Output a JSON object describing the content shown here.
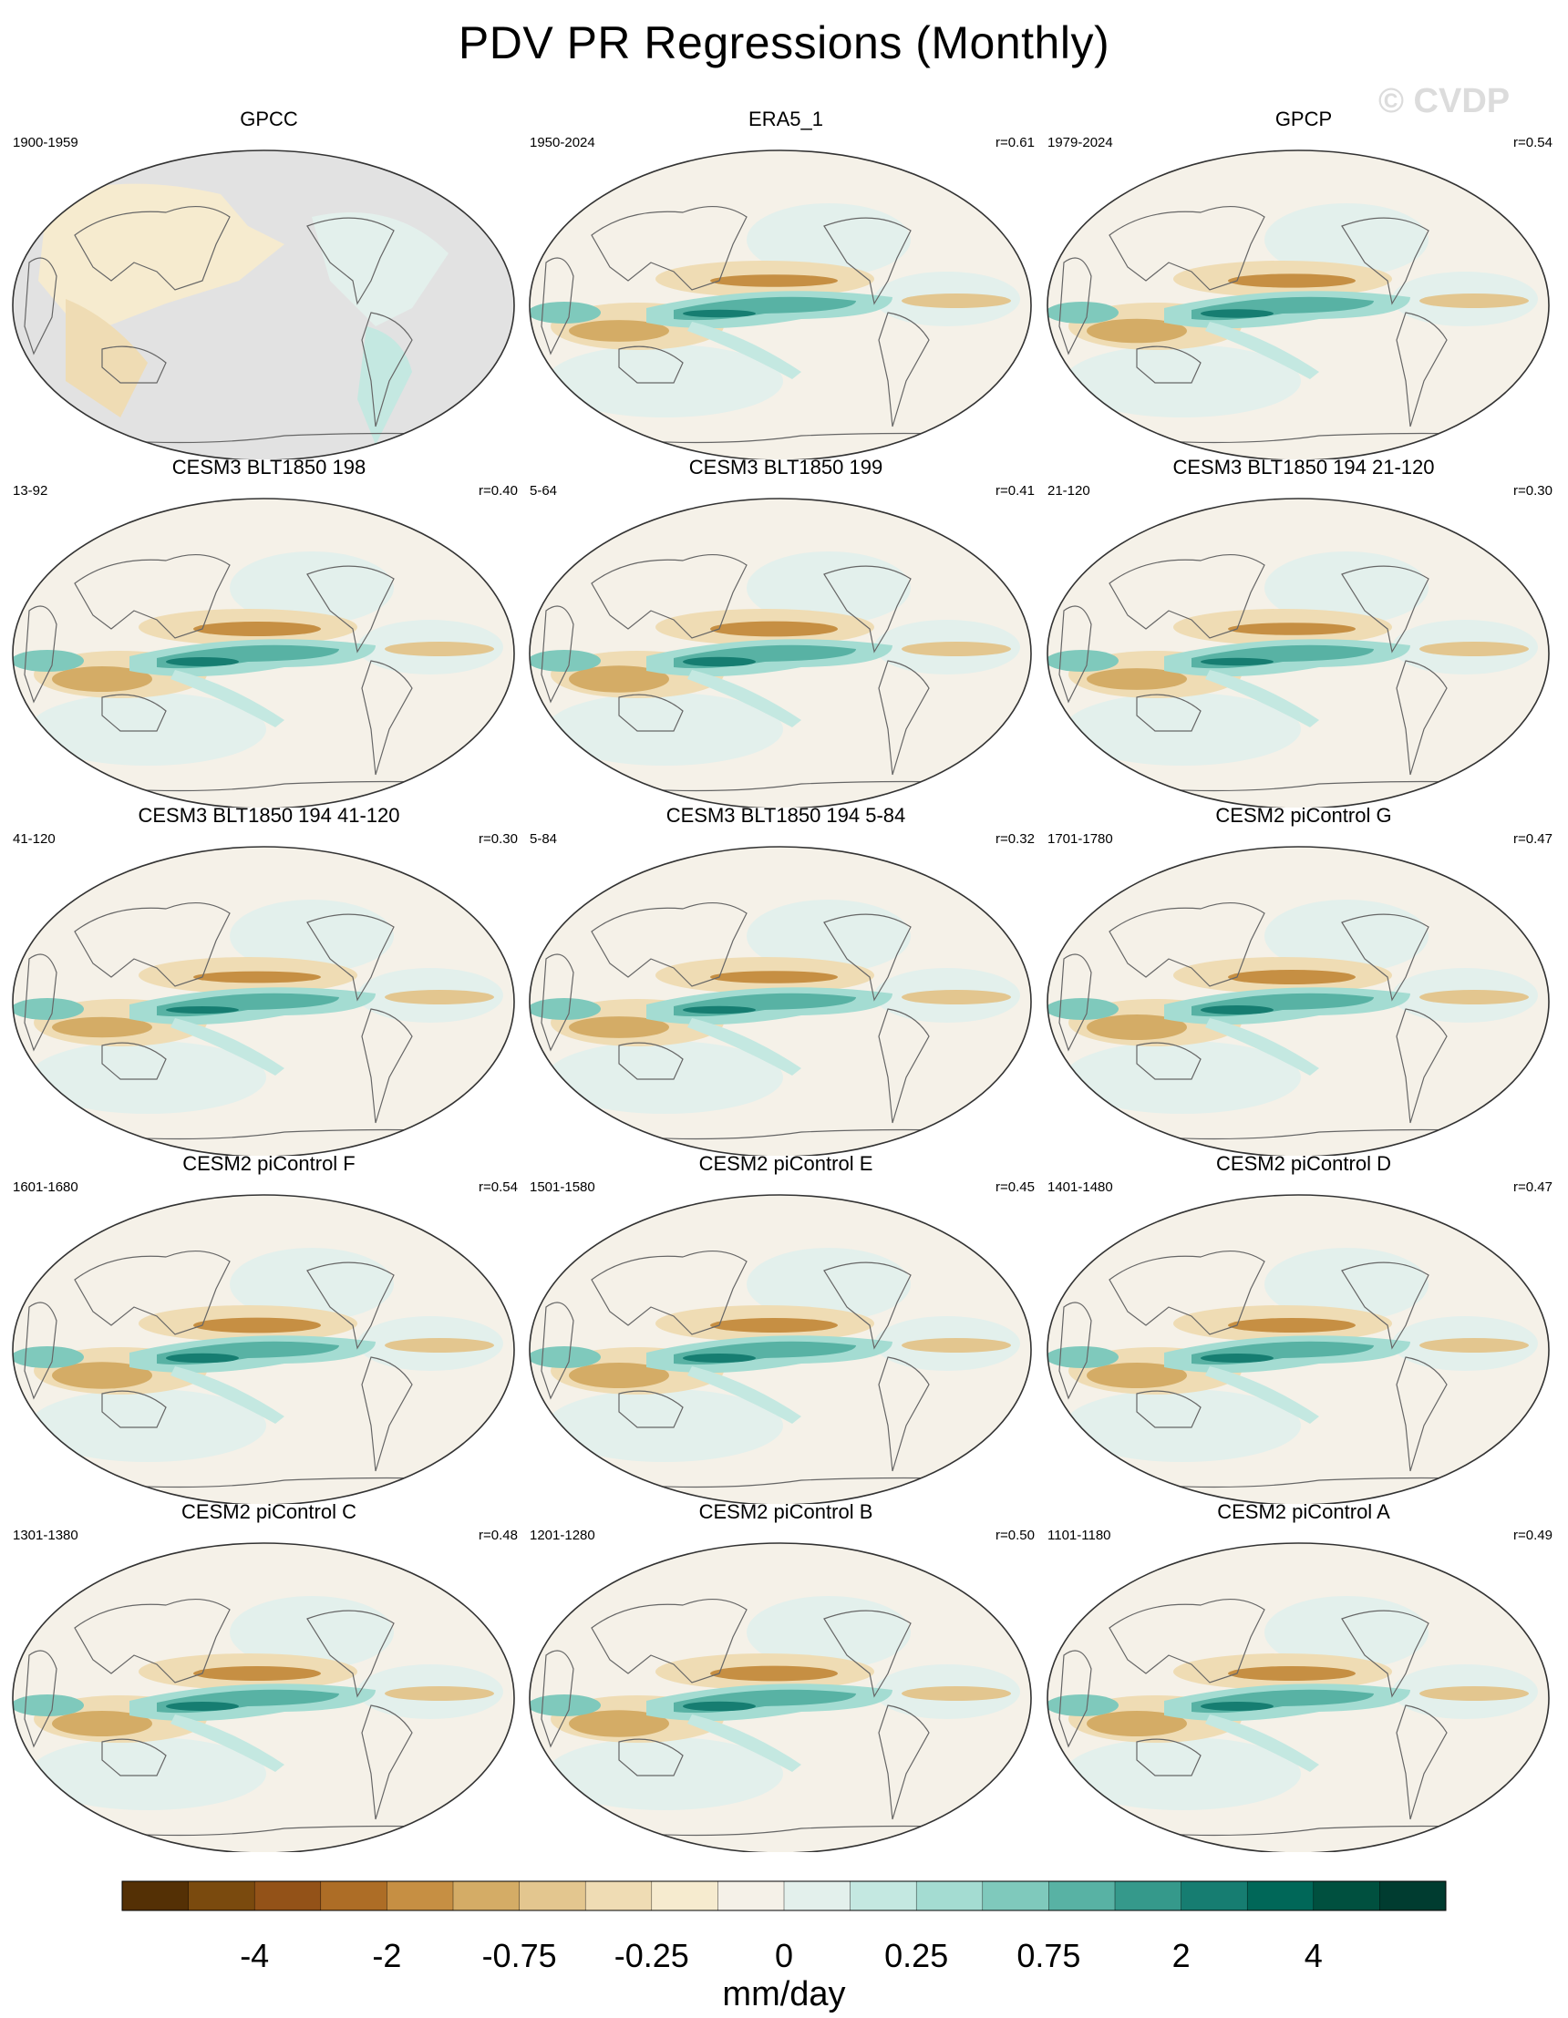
{
  "title": "PDV PR Regressions (Monthly)",
  "watermark": "© CVDP",
  "panels": [
    {
      "title": "GPCC",
      "period": "1900-1959",
      "r": "",
      "masked": true,
      "scale": 0.55
    },
    {
      "title": "ERA5_1",
      "period": "1950-2024",
      "r": "r=0.61",
      "masked": false,
      "scale": 0.85
    },
    {
      "title": "GPCP",
      "period": "1979-2024",
      "r": "r=0.54",
      "masked": false,
      "scale": 0.95
    },
    {
      "title": "CESM3 BLT1850 198",
      "period": "13-92",
      "r": "r=0.40",
      "masked": false,
      "scale": 1.0
    },
    {
      "title": "CESM3 BLT1850 199",
      "period": "5-64",
      "r": "r=0.41",
      "masked": false,
      "scale": 1.05
    },
    {
      "title": "CESM3 BLT1850 194 21-120",
      "period": "21-120",
      "r": "r=0.30",
      "masked": false,
      "scale": 0.85
    },
    {
      "title": "CESM3 BLT1850 194 41-120",
      "period": "41-120",
      "r": "r=0.30",
      "masked": false,
      "scale": 0.8
    },
    {
      "title": "CESM3 BLT1850 194 5-84",
      "period": "5-84",
      "r": "r=0.32",
      "masked": false,
      "scale": 0.85
    },
    {
      "title": "CESM2 piControl G",
      "period": "1701-1780",
      "r": "r=0.47",
      "masked": false,
      "scale": 1.0
    },
    {
      "title": "CESM2 piControl F",
      "period": "1601-1680",
      "r": "r=0.54",
      "masked": false,
      "scale": 1.05
    },
    {
      "title": "CESM2 piControl E",
      "period": "1501-1580",
      "r": "r=0.45",
      "masked": false,
      "scale": 1.0
    },
    {
      "title": "CESM2 piControl D",
      "period": "1401-1480",
      "r": "r=0.47",
      "masked": false,
      "scale": 1.0
    },
    {
      "title": "CESM2 piControl C",
      "period": "1301-1380",
      "r": "r=0.48",
      "masked": false,
      "scale": 1.0
    },
    {
      "title": "CESM2 piControl B",
      "period": "1201-1280",
      "r": "r=0.50",
      "masked": false,
      "scale": 1.05
    },
    {
      "title": "CESM2 piControl A",
      "period": "1101-1180",
      "r": "r=0.49",
      "masked": false,
      "scale": 1.0
    }
  ],
  "colorbar": {
    "colors": [
      "#543005",
      "#7a4a0e",
      "#935218",
      "#ad6d26",
      "#c68f43",
      "#d4ac66",
      "#e3c68f",
      "#efdcb4",
      "#f6ebcf",
      "#f5f1e8",
      "#e3f0ec",
      "#c4e8e1",
      "#a4dcd2",
      "#7fc9bc",
      "#58b2a4",
      "#35998b",
      "#167d71",
      "#006758",
      "#00503f",
      "#003c30"
    ],
    "labels": [
      "-4",
      "-2",
      "-0.75",
      "-0.25",
      "0",
      "0.25",
      "0.75",
      "2",
      "4"
    ],
    "unit": "mm/day"
  },
  "chart_data": {
    "type": "heatmap",
    "title": "PDV PR Regressions (Monthly)",
    "variable": "precipitation regression on PDV index",
    "units": "mm/day",
    "contour_levels": [
      -4,
      -2,
      -0.75,
      -0.25,
      0,
      0.25,
      0.75,
      2,
      4
    ],
    "panels": [
      "GPCC",
      "ERA5_1",
      "GPCP",
      "CESM3 BLT1850 198",
      "CESM3 BLT1850 199",
      "CESM3 BLT1850 194 21-120",
      "CESM3 BLT1850 194 41-120",
      "CESM3 BLT1850 194 5-84",
      "CESM2 piControl G",
      "CESM2 piControl F",
      "CESM2 piControl E",
      "CESM2 piControl D",
      "CESM2 piControl C",
      "CESM2 piControl B",
      "CESM2 piControl A"
    ],
    "pattern_correlations": [
      null,
      0.61,
      0.54,
      0.4,
      0.41,
      0.3,
      0.3,
      0.32,
      0.47,
      0.54,
      0.45,
      0.47,
      0.48,
      0.5,
      0.49
    ]
  }
}
